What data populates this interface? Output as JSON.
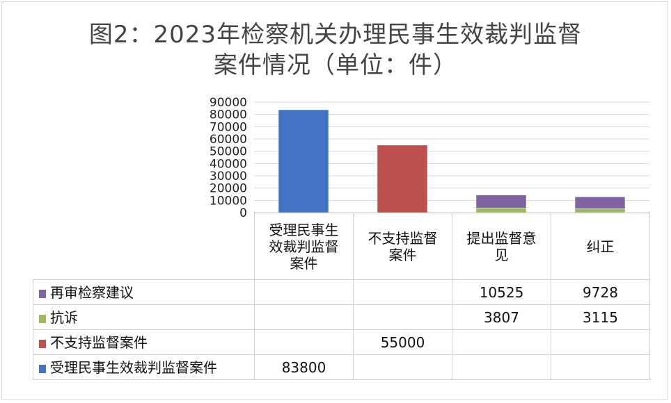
{
  "title_lines": [
    "图2：2023年检察机关办理民事生效裁判监督",
    "案件情况（单位：件）"
  ],
  "chart_data": {
    "type": "bar",
    "stacked": true,
    "title": "图2：2023年检察机关办理民事生效裁判监督案件情况（单位：件）",
    "categories": [
      "受理民事生效裁判监督案件",
      "不支持监督案件",
      "提出监督意见",
      "纠正"
    ],
    "category_lines": [
      [
        "受理民事生",
        "效裁判监督",
        "案件"
      ],
      [
        "不支持监督",
        "案件"
      ],
      [
        "提出监督意",
        "见"
      ],
      [
        "纠正"
      ]
    ],
    "series": [
      {
        "name": "受理民事生效裁判监督案件",
        "color": "#4472c4",
        "values": [
          83800,
          null,
          null,
          null
        ],
        "labels": [
          "83800",
          "",
          "",
          ""
        ]
      },
      {
        "name": "不支持监督案件",
        "color": "#c0504d",
        "values": [
          null,
          55000,
          null,
          null
        ],
        "labels": [
          "",
          "55000",
          "",
          ""
        ]
      },
      {
        "name": "抗诉",
        "color": "#9bbb59",
        "values": [
          null,
          null,
          3807,
          3115
        ],
        "labels": [
          "",
          "",
          "3807",
          "3115"
        ]
      },
      {
        "name": "再审检察建议",
        "color": "#8064a2",
        "values": [
          null,
          null,
          10525,
          9728
        ],
        "labels": [
          "",
          "",
          "10525",
          "9728"
        ]
      }
    ],
    "table_row_order": [
      3,
      2,
      1,
      0
    ],
    "ylim": [
      0,
      90000
    ],
    "yticks": [
      0,
      10000,
      20000,
      30000,
      40000,
      50000,
      60000,
      70000,
      80000,
      90000
    ],
    "ytick_labels": [
      "0",
      "10000",
      "20000",
      "30000",
      "40000",
      "50000",
      "60000",
      "70000",
      "80000",
      "90000"
    ],
    "grid": true,
    "legend": "data-table"
  }
}
